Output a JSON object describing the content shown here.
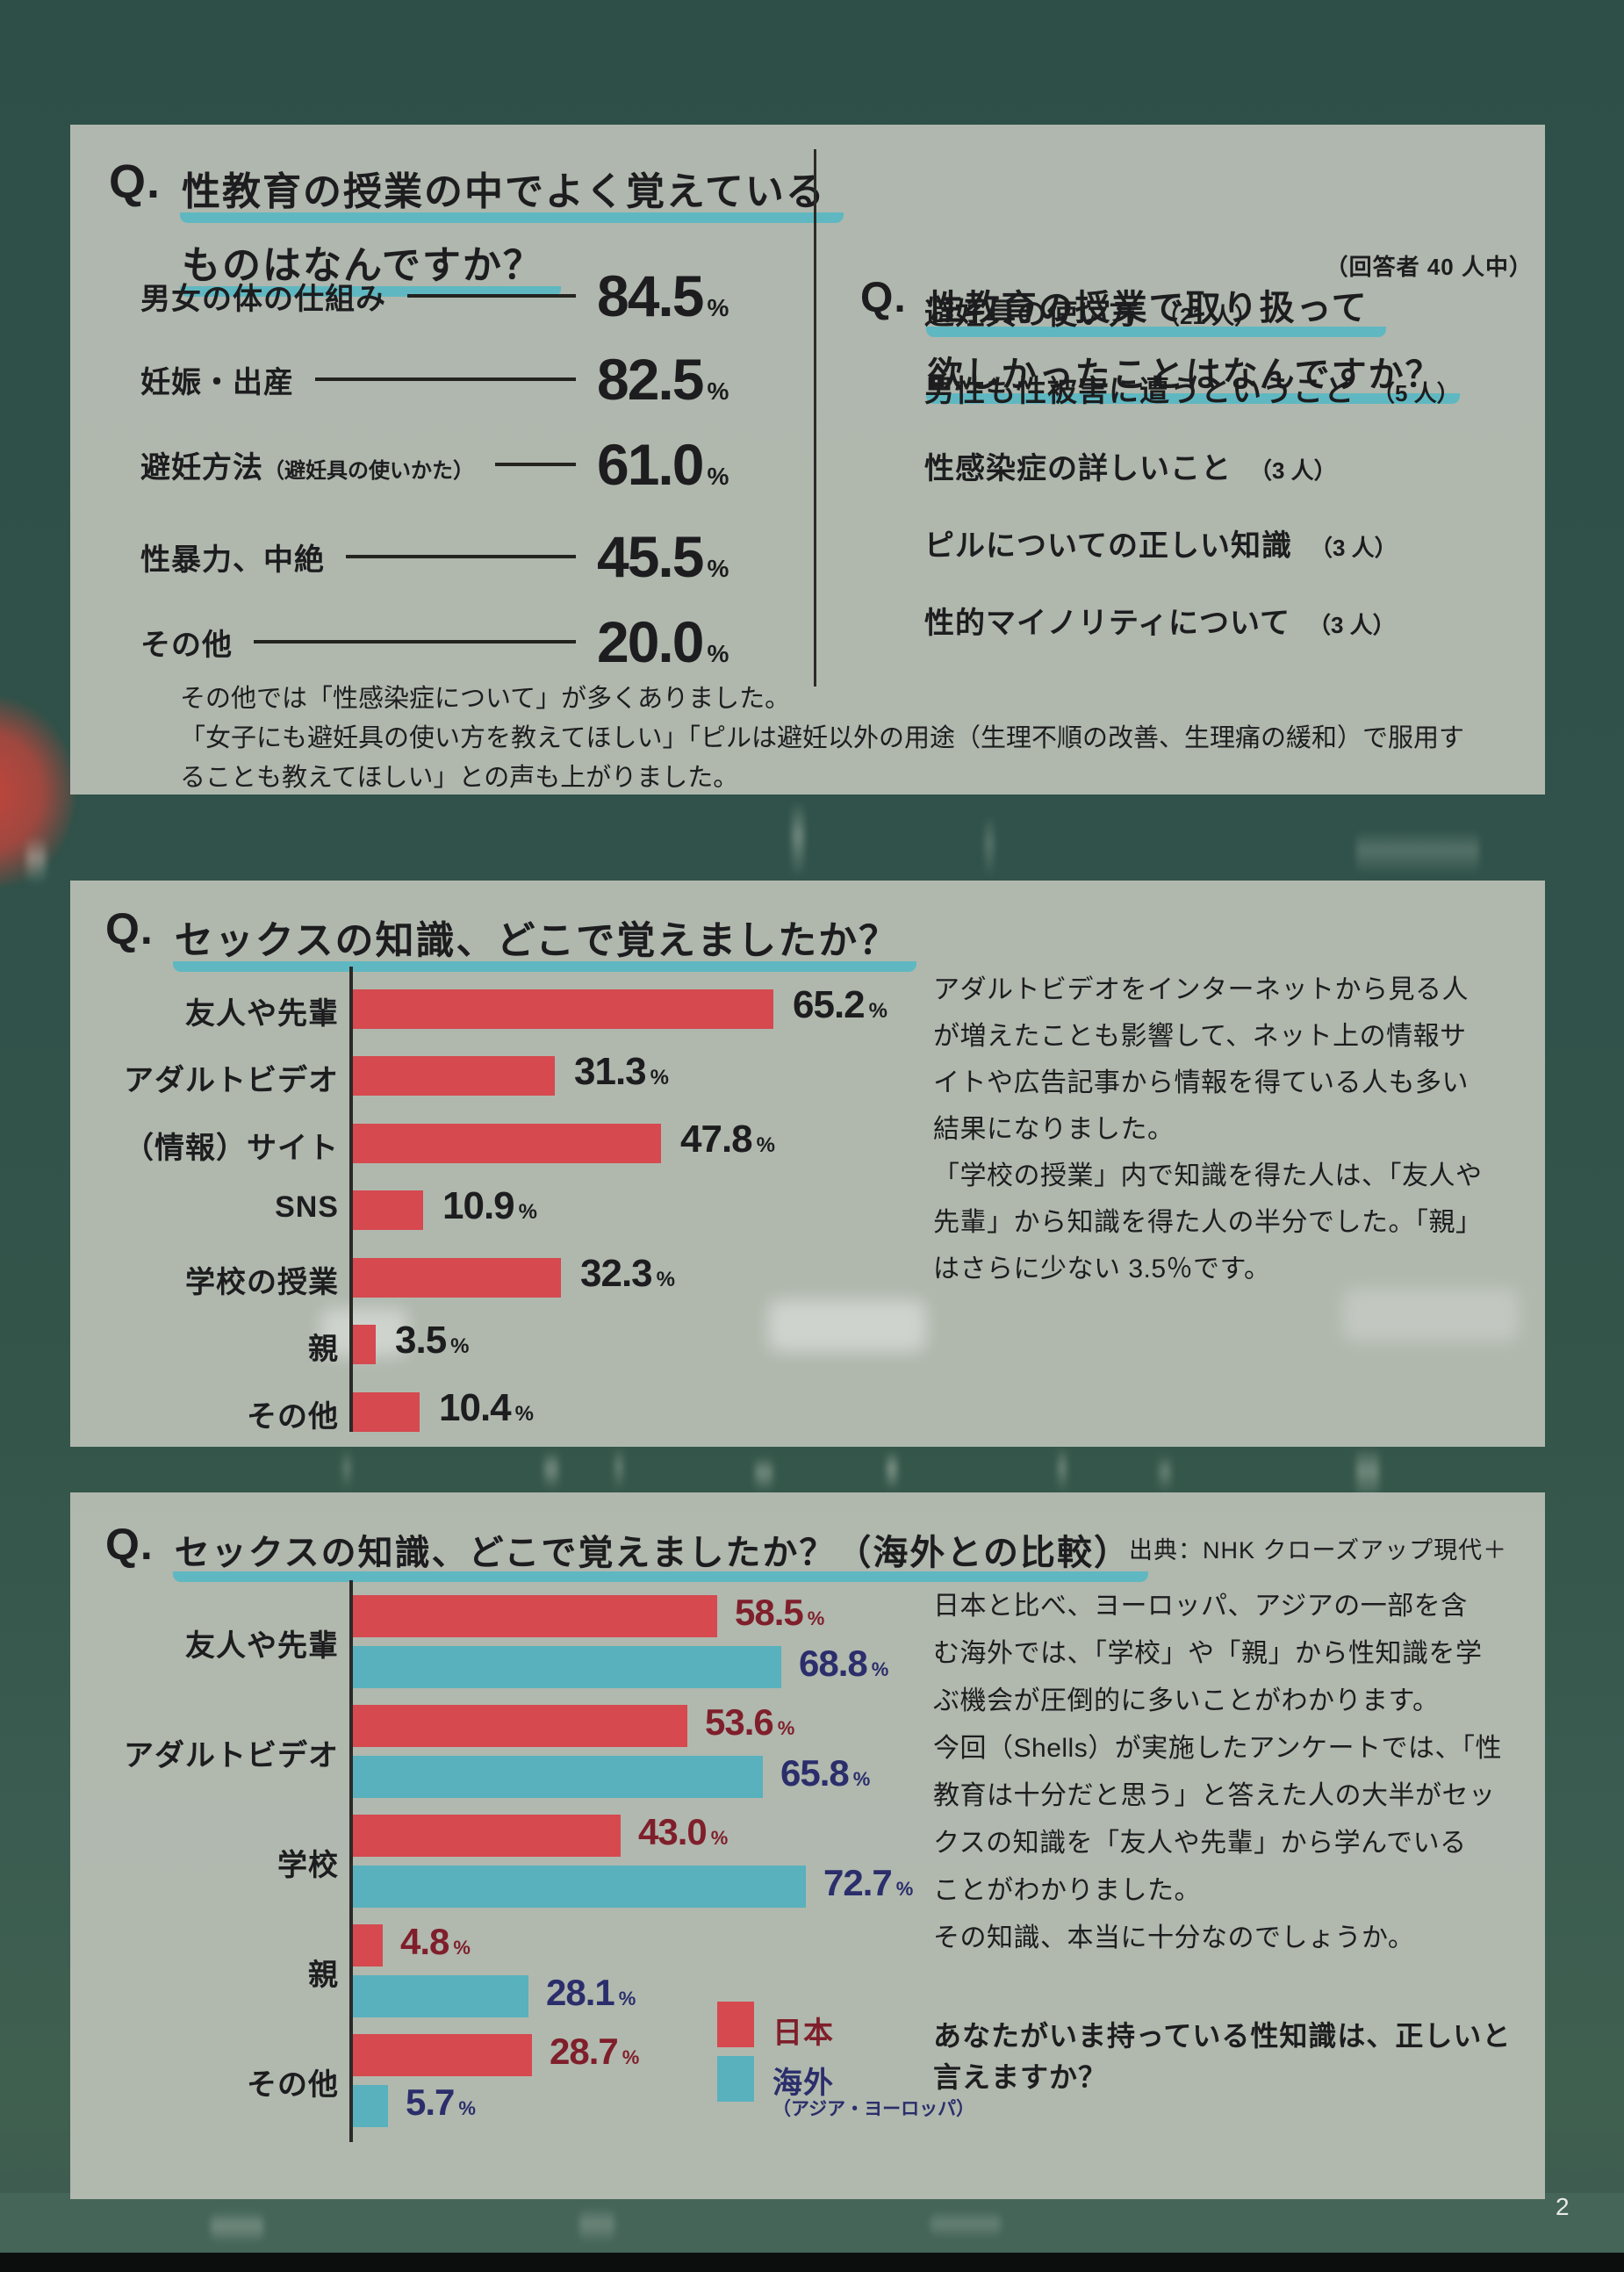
{
  "page": {
    "number": "2"
  },
  "colors": {
    "accent_teal": "#5fb8c1",
    "bar_red": "#d5494f",
    "bar_blue": "#58b1bd",
    "value_dark_red": "#7f1f2b",
    "value_dark_navy": "#2b2e6b",
    "text_black": "#1d1d1f"
  },
  "panel1": {
    "q_mark": "Q.",
    "title_lines": [
      "性教育の授業の中でよく覚えている",
      "ものはなんですか？"
    ],
    "items": [
      {
        "label": "男女の体の仕組み",
        "sub": "",
        "value": "84.5",
        "unit": "%"
      },
      {
        "label": "妊娠・出産",
        "sub": "",
        "value": "82.5",
        "unit": "%"
      },
      {
        "label": "避妊方法",
        "sub": "（避妊具の使いかた）",
        "value": "61.0",
        "unit": "%"
      },
      {
        "label": "性暴力、中絶",
        "sub": "",
        "value": "45.5",
        "unit": "%"
      },
      {
        "label": "その他",
        "sub": "",
        "value": "20.0",
        "unit": "%"
      }
    ],
    "right": {
      "q_mark": "Q.",
      "title_lines": [
        "性教育の授業で取り扱って",
        "欲しかったことはなんですか？"
      ],
      "respondents_note": "（回答者 40 人中）",
      "items": [
        {
          "label": "避妊具の使い方",
          "count": "（21 人）"
        },
        {
          "label": "男性も性被害に遭うということ",
          "count": "（5 人）"
        },
        {
          "label": "性感染症の詳しいこと",
          "count": "（3 人）"
        },
        {
          "label": "ピルについての正しい知識",
          "count": "（3 人）"
        },
        {
          "label": "性的マイノリティについて",
          "count": "（3 人）"
        }
      ]
    },
    "notes": [
      "その他では「性感染症について」が多くありました。",
      "「女子にも避妊具の使い方を教えてほしい」「ピルは避妊以外の用途（生理不順の改善、生理痛の緩和）で服用す",
      "ることも教えてほしい」との声も上がりました。"
    ]
  },
  "panel2": {
    "q_mark": "Q.",
    "title": "セックスの知識、どこで覚えましたか？",
    "description_lines": [
      "アダルトビデオをインターネットから見る人",
      "が増えたことも影響して、ネット上の情報サ",
      "イトや広告記事から情報を得ている人も多い",
      "結果になりました。",
      "「学校の授業」内で知識を得た人は、「友人や",
      "先輩」から知識を得た人の半分でした。「親」",
      "はさらに少ない 3.5％です。"
    ]
  },
  "panel3": {
    "q_mark": "Q.",
    "title": "セックスの知識、どこで覚えましたか？（海外との比較）",
    "source": "出典：NHK クローズアップ現代＋",
    "legend": {
      "japan": "日本",
      "overseas": "海外",
      "overseas_sub": "（アジア・ヨーロッパ）"
    },
    "description_lines": [
      "日本と比べ、ヨーロッパ、アジアの一部を含",
      "む海外では、「学校」や「親」から性知識を学",
      "ぶ機会が圧倒的に多いことがわかります。",
      "今回（Shells）が実施したアンケートでは、「性",
      "教育は十分だと思う」と答えた人の大半がセッ",
      "クスの知識を「友人や先輩」から学んでいる",
      "ことがわかりました。",
      "その知識、本当に十分なのでしょうか。"
    ],
    "question_lines": [
      "あなたがいま持っている性知識は、正しいと",
      "言えますか？"
    ]
  },
  "chart_data": [
    {
      "type": "bar",
      "title": "性教育の授業の中でよく覚えているものはなんですか？",
      "categories": [
        "男女の体の仕組み",
        "妊娠・出産",
        "避妊方法（避妊具の使いかた）",
        "性暴力、中絶",
        "その他"
      ],
      "values": [
        84.5,
        82.5,
        61.0,
        45.5,
        20.0
      ],
      "unit": "%"
    },
    {
      "type": "bar",
      "title": "セックスの知識、どこで覚えましたか？",
      "categories": [
        "友人や先輩",
        "アダルトビデオ",
        "（情報）サイト",
        "SNS",
        "学校の授業",
        "親",
        "その他"
      ],
      "values": [
        65.2,
        31.3,
        47.8,
        10.9,
        32.3,
        3.5,
        10.4
      ],
      "unit": "%",
      "xlim": [
        0,
        100
      ],
      "bar_color": "#d5494f"
    },
    {
      "type": "bar",
      "title": "セックスの知識、どこで覚えましたか？（海外との比較）",
      "categories": [
        "友人や先輩",
        "アダルトビデオ",
        "学校",
        "親",
        "その他"
      ],
      "series": [
        {
          "name": "日本",
          "color": "#d5494f",
          "values": [
            58.5,
            53.6,
            43.0,
            4.8,
            28.7
          ]
        },
        {
          "name": "海外（アジア・ヨーロッパ）",
          "color": "#58b1bd",
          "values": [
            68.8,
            65.8,
            72.7,
            28.1,
            5.7
          ]
        }
      ],
      "unit": "%"
    }
  ]
}
